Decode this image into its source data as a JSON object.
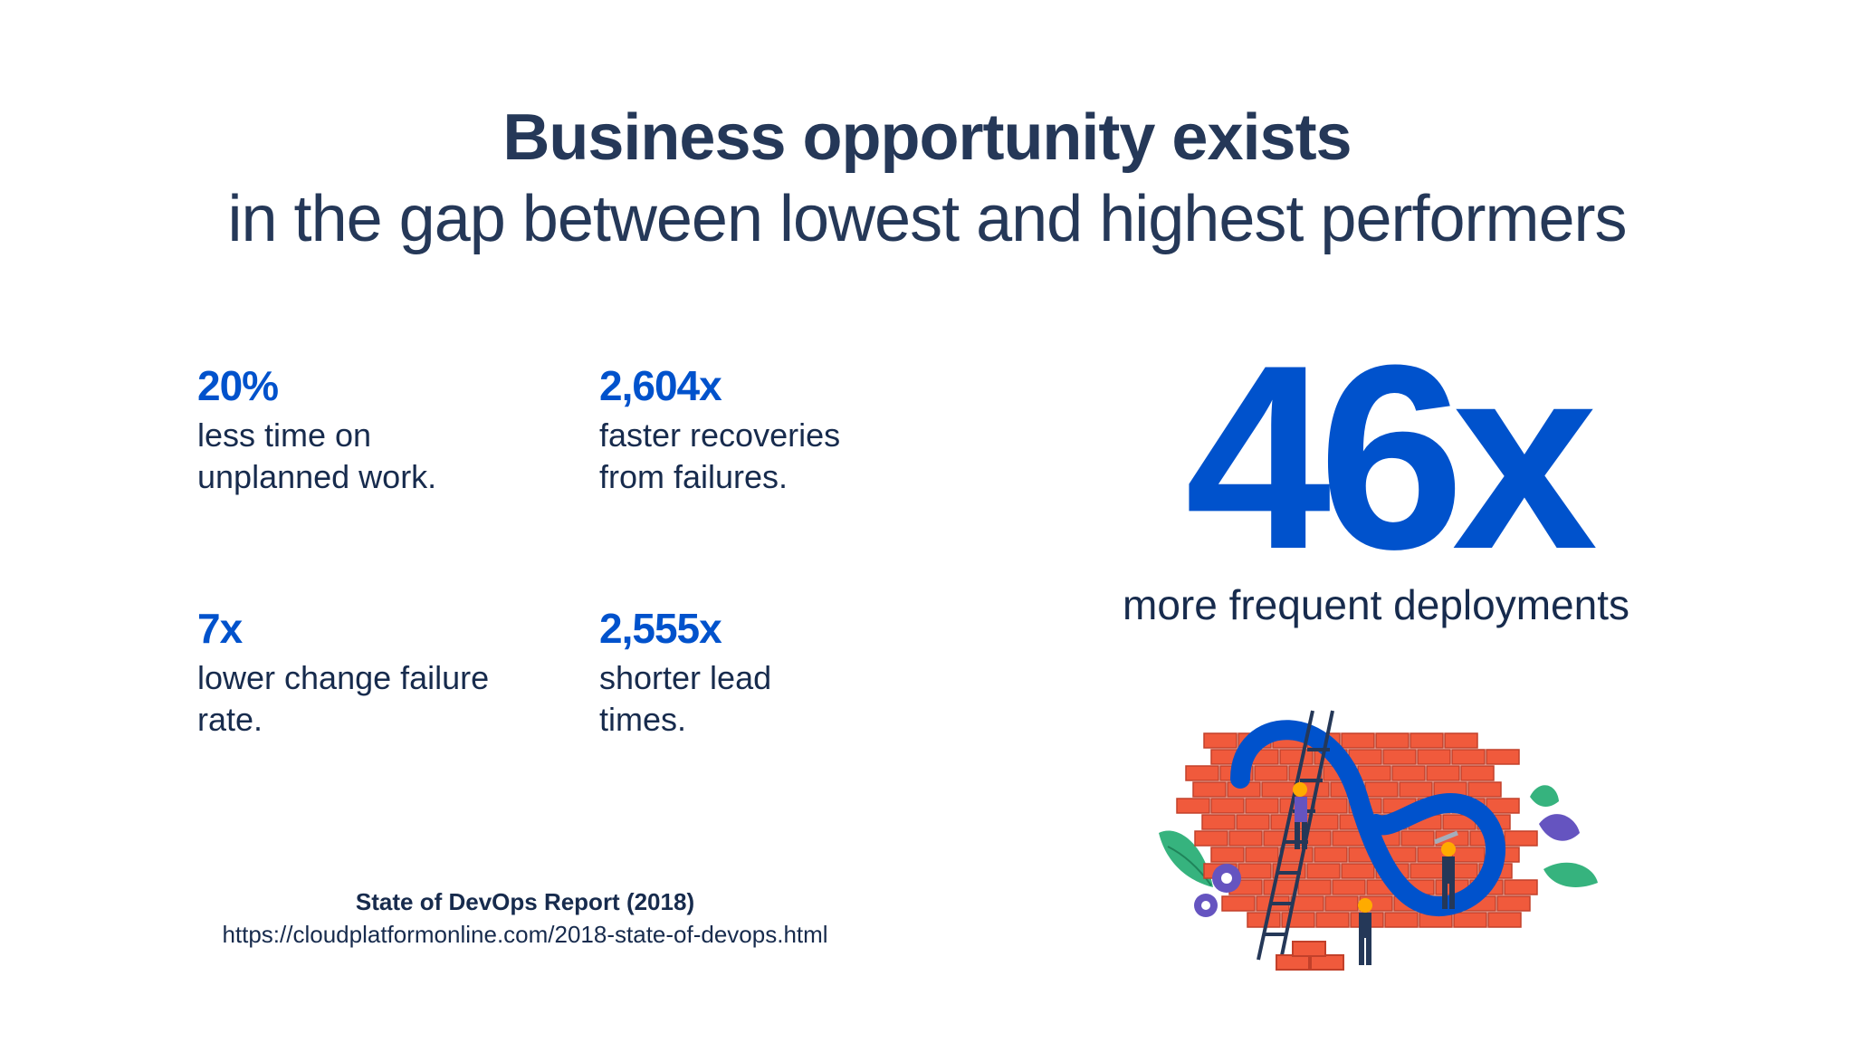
{
  "title": {
    "line1": "Business opportunity exists",
    "line2": "in the gap between lowest and highest performers"
  },
  "stats": [
    {
      "value": "20%",
      "description": "less time on\nunplanned work."
    },
    {
      "value": "2,604x",
      "description": "faster recoveries\nfrom failures."
    },
    {
      "value": "7x",
      "description": "lower change failure\nrate."
    },
    {
      "value": "2,555x",
      "description": "shorter lead\ntimes."
    }
  ],
  "headline_stat": {
    "value": "46x",
    "description": "more frequent deployments"
  },
  "source": {
    "name": "State of DevOps Report (2018)",
    "url": "https://cloudplatformonline.com/2018-state-of-devops.html"
  },
  "colors": {
    "accent": "#0052CC",
    "title": "#253858",
    "text": "#172B4D",
    "brick": "#F05A3C",
    "mortar": "#C2402A"
  },
  "illustration": {
    "icons": [
      "brick-wall-icon",
      "infinity-loop-icon",
      "ladder-icon",
      "worker-icon",
      "gear-icon",
      "leaf-icon"
    ]
  }
}
